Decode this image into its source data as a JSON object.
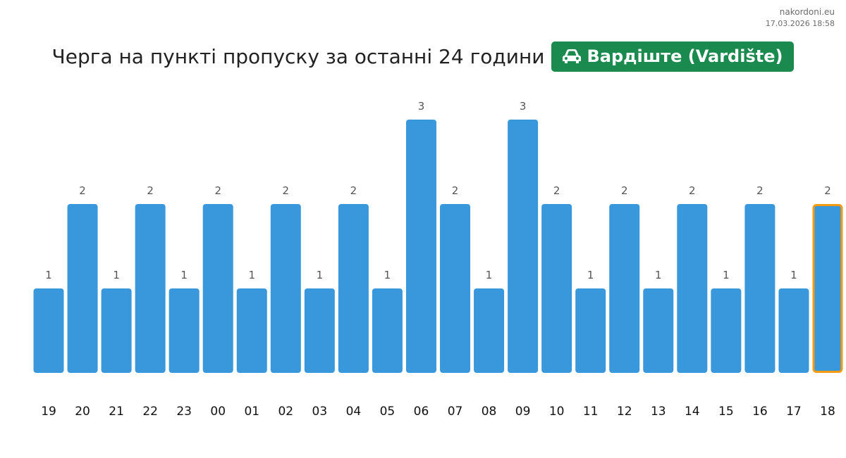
{
  "source": {
    "site": "nakordoni.eu",
    "timestamp": "17.03.2026 18:58"
  },
  "header": {
    "title": "Черга на пункті пропуску за останні 24 години",
    "checkpoint_label": "Вардіште (Vardište)",
    "checkpoint_icon": "car-icon",
    "checkpoint_color": "#1a8a4e"
  },
  "chart_data": {
    "type": "bar",
    "categories": [
      "19",
      "20",
      "21",
      "22",
      "23",
      "00",
      "01",
      "02",
      "03",
      "04",
      "05",
      "06",
      "07",
      "08",
      "09",
      "10",
      "11",
      "12",
      "13",
      "14",
      "15",
      "16",
      "17",
      "18"
    ],
    "values": [
      1,
      2,
      1,
      2,
      1,
      2,
      1,
      2,
      1,
      2,
      1,
      3,
      2,
      1,
      3,
      2,
      1,
      2,
      1,
      2,
      1,
      2,
      1,
      2
    ],
    "ylim": [
      0,
      3
    ],
    "grid": false,
    "bar_color": "#3898db",
    "highlight_index": 23,
    "highlight_color": "#f39c12",
    "data_labels": true
  }
}
